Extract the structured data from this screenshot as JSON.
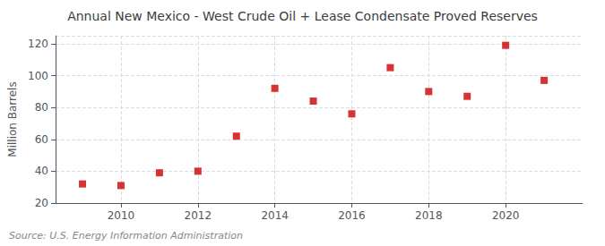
{
  "chart_data": {
    "type": "scatter",
    "title": "Annual New Mexico - West Crude Oil + Lease Condensate Proved Reserves",
    "ylabel": "Million Barrels",
    "source": "Source: U.S. Energy Information Administration",
    "x": [
      2009,
      2010,
      2011,
      2012,
      2013,
      2014,
      2015,
      2016,
      2017,
      2018,
      2019,
      2020,
      2021
    ],
    "values": [
      32,
      31,
      39,
      40,
      62,
      92,
      84,
      76,
      105,
      90,
      87,
      119,
      97
    ],
    "color": "#cc0000",
    "marker": "square",
    "xlim": [
      2008.3,
      2022.0
    ],
    "ylim": [
      20,
      125
    ],
    "xticks": [
      2010,
      2012,
      2014,
      2016,
      2018,
      2020
    ],
    "yticks": [
      20,
      40,
      60,
      80,
      100,
      120
    ],
    "grid": true
  }
}
